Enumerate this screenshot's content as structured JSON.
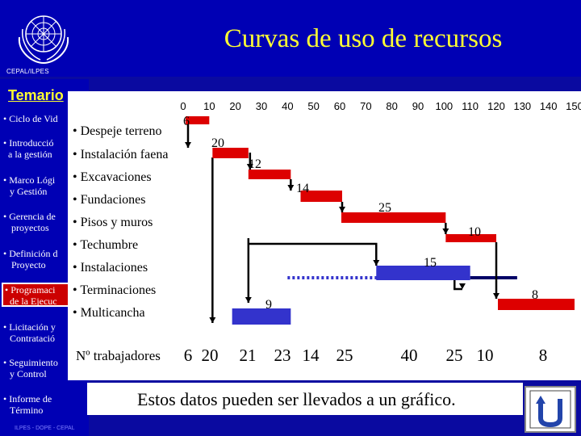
{
  "header": {
    "title": "Curvas de uso de recursos",
    "org": "CEPAL/ILPES",
    "logo_icon": "un-emblem-icon"
  },
  "sidebar": {
    "heading": "Temario",
    "items": [
      {
        "label": "• Ciclo de Vid"
      },
      {
        "label": "• Introducció"
      },
      {
        "label": "a la gestión"
      },
      {
        "label": "• Marco Lógi"
      },
      {
        "label": "y Gestión"
      },
      {
        "label": "• Gerencia de"
      },
      {
        "label": "proyectos"
      },
      {
        "label": "• Definición d"
      },
      {
        "label": "Proyecto"
      },
      {
        "label": "• Programaci"
      },
      {
        "label": "de la Ejecuc"
      },
      {
        "label": "• Licitación y"
      },
      {
        "label": "Contratació"
      },
      {
        "label": "• Seguimiento"
      },
      {
        "label": "y Control"
      },
      {
        "label": "• Informe de"
      },
      {
        "label": "Término"
      }
    ],
    "footer_code": "ILPES - DOPE - CEPAL"
  },
  "tasks": [
    {
      "label": "• Despeje terreno"
    },
    {
      "label": "• Instalación faena"
    },
    {
      "label": "• Excavaciones"
    },
    {
      "label": "• Fundaciones"
    },
    {
      "label": "• Pisos y muros"
    },
    {
      "label": "• Techumbre"
    },
    {
      "label": "• Instalaciones"
    },
    {
      "label": "• Terminaciones"
    },
    {
      "label": "• Multicancha"
    }
  ],
  "chart_data": {
    "type": "gantt",
    "x_ticks": [
      "0",
      "10",
      "20",
      "30",
      "40",
      "50",
      "60",
      "70",
      "80",
      "90",
      "100",
      "110",
      "120",
      "130",
      "140",
      "150"
    ],
    "xlim": [
      0,
      150
    ],
    "bars": [
      {
        "task": "Despeje terreno",
        "start": 0,
        "end": 10,
        "workers": "6",
        "color": "#dd0000"
      },
      {
        "task": "Instalación faena",
        "start": 10,
        "end": 25,
        "workers": "20",
        "color": "#dd0000"
      },
      {
        "task": "Excavaciones",
        "start": 25,
        "end": 45,
        "workers": "12",
        "color": "#dd0000"
      },
      {
        "task": "Fundaciones",
        "start": 45,
        "end": 60,
        "workers": "14",
        "color": "#dd0000"
      },
      {
        "task": "Pisos y muros",
        "start": 60,
        "end": 100,
        "workers": "25",
        "color": "#dd0000"
      },
      {
        "task": "Techumbre",
        "start": 100,
        "end": 120,
        "workers": "10",
        "color": "#dd0000"
      },
      {
        "task": "Instalaciones",
        "start": 74,
        "end": 110,
        "workers": "15",
        "color": "#3333cc"
      },
      {
        "task": "Terminaciones",
        "start": 120,
        "end": 150,
        "workers": "8",
        "color": "#dd0000"
      },
      {
        "task": "Multicancha",
        "start": 20,
        "end": 40,
        "workers": "9",
        "color": "#3333cc"
      }
    ],
    "slack_lines": [
      {
        "start": 40,
        "end": 104,
        "style": "dotted",
        "color": "#3333cc"
      },
      {
        "start": 110,
        "end": 128,
        "style": "solid",
        "color": "#000066"
      }
    ]
  },
  "workers_row": {
    "label": "Nº trabajadores",
    "values": [
      "6",
      "20",
      "21",
      "23",
      "14",
      "25",
      "40",
      "25",
      "10",
      "8"
    ]
  },
  "caption": "Estos datos pueden ser llevados a un gráfico.",
  "return_button": {
    "icon": "return-arrow-icon"
  },
  "colors": {
    "background": "#0a0aa0",
    "title": "#ffff33",
    "task_bar": "#dd0000",
    "blue_bar": "#3333cc"
  }
}
